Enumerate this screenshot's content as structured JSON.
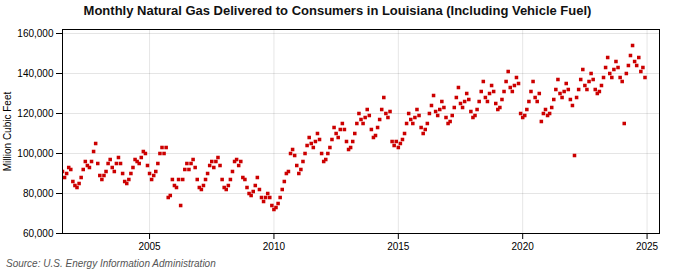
{
  "chart_data": {
    "type": "scatter",
    "title": "Monthly Natural Gas Delivered to Consumers in Louisiana (Including Vehicle Fuel)",
    "ylabel": "Million Cubic Feet",
    "caption": "Source: U.S. Energy Information Administration",
    "color": "#cc0000",
    "marker": "square",
    "grid": true,
    "xlim": [
      2001.5,
      2025.5
    ],
    "ylim": [
      60000,
      162000
    ],
    "xticks": [
      2005,
      2010,
      2015,
      2020,
      2025
    ],
    "yticks": [
      {
        "value": 60000,
        "label": "60,000"
      },
      {
        "value": 80000,
        "label": "80,000"
      },
      {
        "value": 100000,
        "label": "100,000"
      },
      {
        "value": 120000,
        "label": "120,000"
      },
      {
        "value": 140000,
        "label": "140,000"
      },
      {
        "value": 160000,
        "label": "160,000"
      }
    ],
    "x": [
      2001.5,
      2001.583,
      2001.667,
      2001.75,
      2001.833,
      2001.917,
      2002.0,
      2002.083,
      2002.167,
      2002.25,
      2002.333,
      2002.417,
      2002.5,
      2002.583,
      2002.667,
      2002.75,
      2002.833,
      2002.917,
      2003.0,
      2003.083,
      2003.167,
      2003.25,
      2003.333,
      2003.417,
      2003.5,
      2003.583,
      2003.667,
      2003.75,
      2003.833,
      2003.917,
      2004.0,
      2004.083,
      2004.167,
      2004.25,
      2004.333,
      2004.417,
      2004.5,
      2004.583,
      2004.667,
      2004.75,
      2004.833,
      2004.917,
      2005.0,
      2005.083,
      2005.167,
      2005.25,
      2005.333,
      2005.417,
      2005.5,
      2005.583,
      2005.667,
      2005.75,
      2005.833,
      2005.917,
      2006.0,
      2006.083,
      2006.167,
      2006.25,
      2006.333,
      2006.417,
      2006.5,
      2006.583,
      2006.667,
      2006.75,
      2006.833,
      2006.917,
      2007.0,
      2007.083,
      2007.167,
      2007.25,
      2007.333,
      2007.417,
      2007.5,
      2007.583,
      2007.667,
      2007.75,
      2007.833,
      2007.917,
      2008.0,
      2008.083,
      2008.167,
      2008.25,
      2008.333,
      2008.417,
      2008.5,
      2008.583,
      2008.667,
      2008.75,
      2008.833,
      2008.917,
      2009.0,
      2009.083,
      2009.167,
      2009.25,
      2009.333,
      2009.417,
      2009.5,
      2009.583,
      2009.667,
      2009.75,
      2009.833,
      2009.917,
      2010.0,
      2010.083,
      2010.167,
      2010.25,
      2010.333,
      2010.417,
      2010.5,
      2010.583,
      2010.667,
      2010.75,
      2010.833,
      2010.917,
      2011.0,
      2011.083,
      2011.167,
      2011.25,
      2011.333,
      2011.417,
      2011.5,
      2011.583,
      2011.667,
      2011.75,
      2011.833,
      2011.917,
      2012.0,
      2012.083,
      2012.167,
      2012.25,
      2012.333,
      2012.417,
      2012.5,
      2012.583,
      2012.667,
      2012.75,
      2012.833,
      2012.917,
      2013.0,
      2013.083,
      2013.167,
      2013.25,
      2013.333,
      2013.417,
      2013.5,
      2013.583,
      2013.667,
      2013.75,
      2013.833,
      2013.917,
      2014.0,
      2014.083,
      2014.167,
      2014.25,
      2014.333,
      2014.417,
      2014.5,
      2014.583,
      2014.667,
      2014.75,
      2014.833,
      2014.917,
      2015.0,
      2015.083,
      2015.167,
      2015.25,
      2015.333,
      2015.417,
      2015.5,
      2015.583,
      2015.667,
      2015.75,
      2015.833,
      2015.917,
      2016.0,
      2016.083,
      2016.167,
      2016.25,
      2016.333,
      2016.417,
      2016.5,
      2016.583,
      2016.667,
      2016.75,
      2016.833,
      2016.917,
      2017.0,
      2017.083,
      2017.167,
      2017.25,
      2017.333,
      2017.417,
      2017.5,
      2017.583,
      2017.667,
      2017.75,
      2017.833,
      2017.917,
      2018.0,
      2018.083,
      2018.167,
      2018.25,
      2018.333,
      2018.417,
      2018.5,
      2018.583,
      2018.667,
      2018.75,
      2018.833,
      2018.917,
      2019.0,
      2019.083,
      2019.167,
      2019.25,
      2019.333,
      2019.417,
      2019.5,
      2019.583,
      2019.667,
      2019.75,
      2019.833,
      2019.917,
      2020.0,
      2020.083,
      2020.167,
      2020.25,
      2020.333,
      2020.417,
      2020.5,
      2020.583,
      2020.667,
      2020.75,
      2020.833,
      2020.917,
      2021.0,
      2021.083,
      2021.167,
      2021.25,
      2021.333,
      2021.417,
      2021.5,
      2021.583,
      2021.667,
      2021.75,
      2021.833,
      2021.917,
      2022.0,
      2022.083,
      2022.167,
      2022.25,
      2022.333,
      2022.417,
      2022.5,
      2022.583,
      2022.667,
      2022.75,
      2022.833,
      2022.917,
      2023.0,
      2023.083,
      2023.167,
      2023.25,
      2023.333,
      2023.417,
      2023.5,
      2023.583,
      2023.667,
      2023.75,
      2023.833,
      2023.917,
      2024.0,
      2024.083,
      2024.167,
      2024.25,
      2024.333,
      2024.417,
      2024.5,
      2024.583,
      2024.667,
      2024.75,
      2024.833,
      2024.917
    ],
    "values": [
      91000,
      88000,
      90000,
      93000,
      92000,
      86000,
      84000,
      83000,
      85000,
      88000,
      92000,
      96000,
      94000,
      93000,
      96000,
      101000,
      105000,
      95000,
      89000,
      87000,
      89000,
      91000,
      95000,
      97000,
      93000,
      91000,
      95000,
      98000,
      95000,
      90000,
      86000,
      85000,
      87000,
      90000,
      93000,
      97000,
      96000,
      95000,
      98000,
      101000,
      100000,
      94000,
      90000,
      87000,
      89000,
      91000,
      95000,
      100000,
      103000,
      100000,
      103000,
      78000,
      79000,
      87000,
      84000,
      83000,
      87000,
      74000,
      87000,
      92000,
      95000,
      92000,
      95000,
      97000,
      93000,
      87000,
      83000,
      82000,
      84000,
      87000,
      90000,
      94000,
      96000,
      93000,
      96000,
      98000,
      94000,
      87000,
      83000,
      82000,
      84000,
      87000,
      91000,
      96000,
      97000,
      94000,
      96000,
      88000,
      87000,
      83000,
      80000,
      79000,
      81000,
      84000,
      88000,
      82000,
      78000,
      76000,
      78000,
      80000,
      78000,
      74000,
      72000,
      73000,
      75000,
      78000,
      82000,
      86000,
      90000,
      91000,
      100000,
      102000,
      99000,
      94000,
      90000,
      92000,
      96000,
      100000,
      104000,
      108000,
      105000,
      103000,
      106000,
      110000,
      107000,
      100000,
      96000,
      97000,
      100000,
      103000,
      107000,
      113000,
      110000,
      108000,
      112000,
      115000,
      112000,
      106000,
      102000,
      103000,
      106000,
      110000,
      115000,
      120000,
      117000,
      115000,
      118000,
      122000,
      119000,
      112000,
      108000,
      109000,
      113000,
      117000,
      122000,
      128000,
      120000,
      118000,
      121000,
      106000,
      104000,
      106000,
      103000,
      105000,
      107000,
      110000,
      115000,
      120000,
      117000,
      115000,
      118000,
      122000,
      119000,
      113000,
      110000,
      112000,
      115000,
      120000,
      124000,
      129000,
      121000,
      119000,
      122000,
      126000,
      123000,
      118000,
      115000,
      116000,
      119000,
      123000,
      128000,
      133000,
      125000,
      123000,
      126000,
      130000,
      127000,
      121000,
      118000,
      119000,
      122000,
      126000,
      131000,
      136000,
      128000,
      126000,
      130000,
      134000,
      131000,
      125000,
      122000,
      123000,
      127000,
      131000,
      136000,
      141000,
      133000,
      131000,
      134000,
      138000,
      135000,
      120000,
      118000,
      119000,
      122000,
      126000,
      131000,
      136000,
      128000,
      126000,
      130000,
      116000,
      120000,
      122000,
      119000,
      120000,
      123000,
      127000,
      132000,
      137000,
      130000,
      128000,
      131000,
      135000,
      132000,
      127000,
      124000,
      99000,
      128000,
      132000,
      137000,
      142000,
      134000,
      132000,
      136000,
      140000,
      137000,
      132000,
      130000,
      131000,
      134000,
      138000,
      143000,
      148000,
      140000,
      138000,
      142000,
      146000,
      143000,
      138000,
      136000,
      115000,
      140000,
      144000,
      149000,
      154000,
      146000,
      144000,
      148000,
      141000,
      143000,
      138000
    ]
  }
}
